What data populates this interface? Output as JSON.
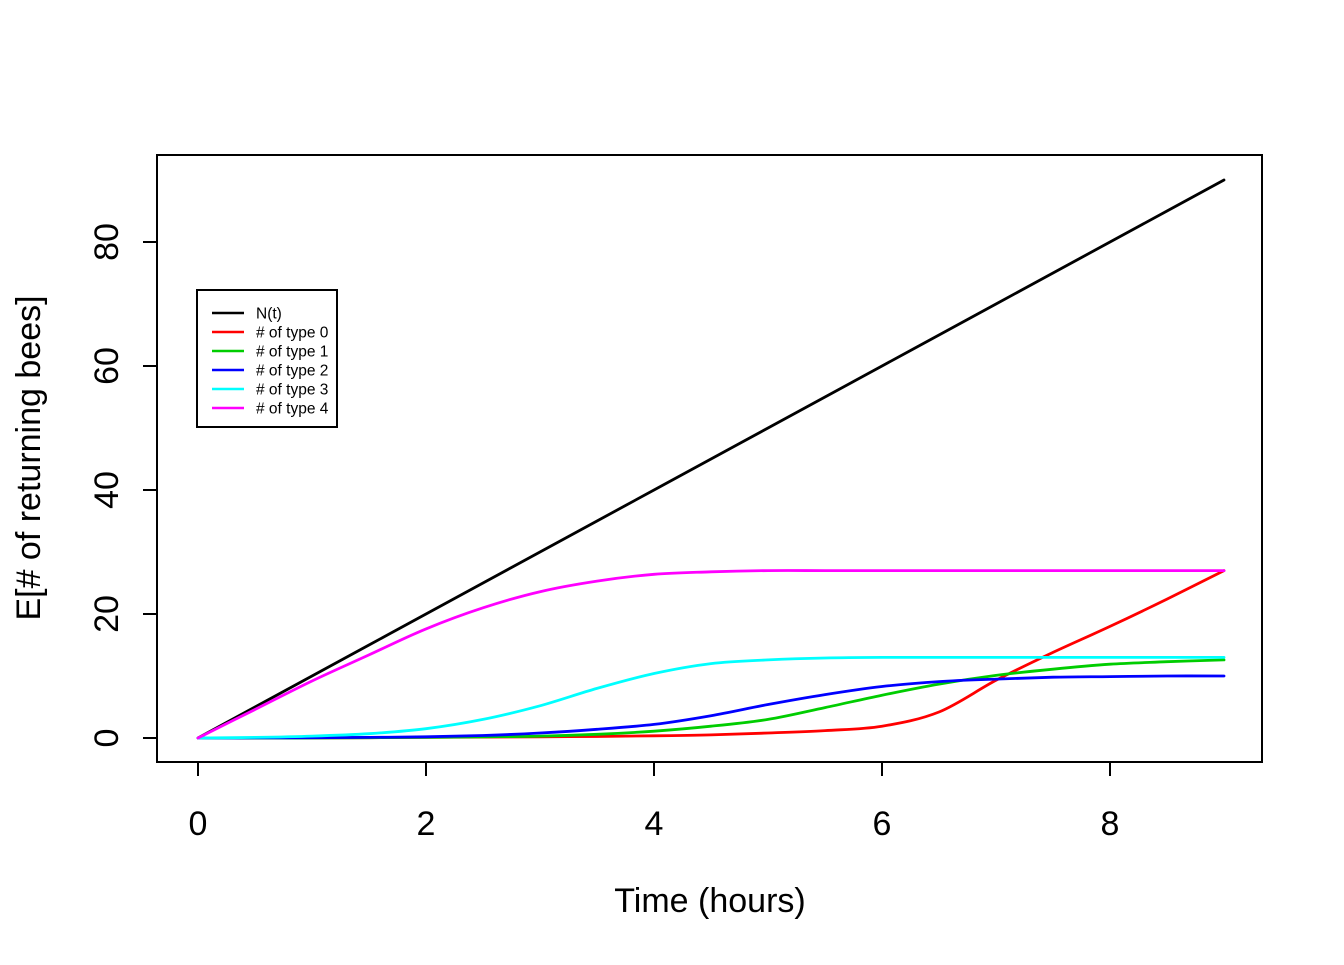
{
  "chart_data": {
    "type": "line",
    "title": "",
    "xlabel": "Time (hours)",
    "ylabel": "E[# of returning bees]",
    "xlim": [
      0,
      9
    ],
    "ylim": [
      0,
      90
    ],
    "x_ticks": [
      0,
      2,
      4,
      6,
      8
    ],
    "y_ticks": [
      0,
      20,
      40,
      60,
      80
    ],
    "grid": false,
    "legend_position": "inside-upper-left",
    "background": "#ffffff",
    "axis_color": "#000000",
    "x": [
      0,
      0.5,
      1,
      1.5,
      2,
      2.5,
      3,
      3.5,
      4,
      4.5,
      5,
      5.5,
      6,
      6.5,
      7,
      7.5,
      8,
      8.5,
      9
    ],
    "series": [
      {
        "name": "N(t)",
        "color": "#000000",
        "values": [
          0,
          5,
          10,
          15,
          20,
          25,
          30,
          35,
          40,
          45,
          50,
          55,
          60,
          65,
          70,
          75,
          80,
          85,
          90
        ]
      },
      {
        "name": "# of type 0",
        "color": "#FF0000",
        "values": [
          0,
          0,
          0,
          0.05,
          0.1,
          0.15,
          0.2,
          0.25,
          0.35,
          0.5,
          0.8,
          1.2,
          1.9,
          4.2,
          9.3,
          13.8,
          18,
          22.4,
          27
        ]
      },
      {
        "name": "# of type 1",
        "color": "#00CD00",
        "values": [
          0,
          0,
          0,
          0.05,
          0.1,
          0.2,
          0.3,
          0.6,
          1.1,
          1.9,
          3,
          4.9,
          6.9,
          8.7,
          10.1,
          11.1,
          11.9,
          12.3,
          12.6
        ]
      },
      {
        "name": "# of type 2",
        "color": "#0000FF",
        "values": [
          0,
          0.02,
          0.05,
          0.1,
          0.2,
          0.4,
          0.8,
          1.4,
          2.2,
          3.6,
          5.4,
          7,
          8.3,
          9.1,
          9.5,
          9.8,
          9.9,
          10,
          10
        ]
      },
      {
        "name": "# of type 3",
        "color": "#00FFFF",
        "values": [
          0,
          0.1,
          0.3,
          0.7,
          1.5,
          3,
          5.2,
          8,
          10.4,
          12,
          12.6,
          12.9,
          13,
          13,
          13,
          13,
          13,
          13,
          13
        ]
      },
      {
        "name": "# of type 4",
        "color": "#FF00FF",
        "values": [
          0,
          4.6,
          9.2,
          13.4,
          17.6,
          21,
          23.6,
          25.3,
          26.4,
          26.8,
          27,
          27,
          27,
          27,
          27,
          27,
          27,
          27,
          27
        ]
      }
    ]
  }
}
